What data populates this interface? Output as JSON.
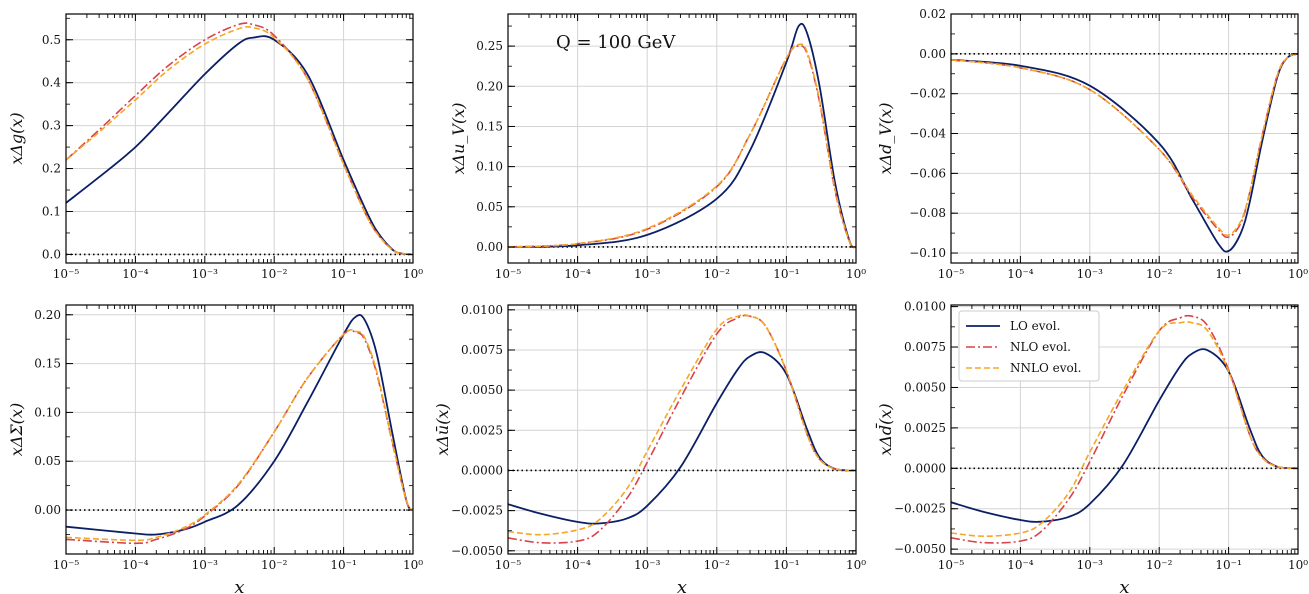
{
  "colors": {
    "lo": "#0b1f66",
    "nlo": "#d8434b",
    "nnlo": "#f5a623",
    "grid": "#d4d4d4",
    "axis": "#000000"
  },
  "legend_entries": [
    "LO evol.",
    "NLO evol.",
    "NNLO evol."
  ],
  "annotation": "Q = 100 GeV",
  "x_axis_label": "x",
  "x_tick_labels": [
    "10⁻⁵",
    "10⁻⁴",
    "10⁻³",
    "10⁻²",
    "10⁻¹",
    "10⁰"
  ],
  "chart_data": [
    {
      "type": "line",
      "ylabel": "xΔg(x)",
      "xscale": "log",
      "xlim": [
        1e-05,
        1
      ],
      "ylim": [
        -0.02,
        0.56
      ],
      "yticks": [
        0.0,
        0.1,
        0.2,
        0.3,
        0.4,
        0.5
      ],
      "ytick_labels": [
        "0.0",
        "0.1",
        "0.2",
        "0.3",
        "0.4",
        "0.5"
      ],
      "x": [
        1e-05,
        3e-05,
        0.0001,
        0.0003,
        0.001,
        0.003,
        0.005,
        0.01,
        0.03,
        0.1,
        0.2,
        0.3,
        0.5,
        0.7,
        1.0
      ],
      "series": [
        {
          "name": "LO evol.",
          "values": [
            0.12,
            0.18,
            0.25,
            0.33,
            0.42,
            0.49,
            0.505,
            0.5,
            0.42,
            0.22,
            0.11,
            0.055,
            0.012,
            0.002,
            0.0
          ]
        },
        {
          "name": "NLO evol.",
          "values": [
            0.22,
            0.29,
            0.37,
            0.44,
            0.5,
            0.535,
            0.535,
            0.51,
            0.41,
            0.21,
            0.1,
            0.05,
            0.011,
            0.002,
            0.0
          ]
        },
        {
          "name": "NNLO evol.",
          "values": [
            0.22,
            0.285,
            0.36,
            0.43,
            0.49,
            0.525,
            0.528,
            0.505,
            0.41,
            0.21,
            0.1,
            0.05,
            0.011,
            0.002,
            0.0
          ]
        }
      ]
    },
    {
      "type": "line",
      "ylabel": "xΔu_V(x)",
      "xscale": "log",
      "xlim": [
        1e-05,
        1
      ],
      "ylim": [
        -0.02,
        0.29
      ],
      "yticks": [
        0.0,
        0.05,
        0.1,
        0.15,
        0.2,
        0.25
      ],
      "ytick_labels": [
        "0.00",
        "0.05",
        "0.10",
        "0.15",
        "0.20",
        "0.25"
      ],
      "x": [
        1e-05,
        0.0001,
        0.001,
        0.01,
        0.03,
        0.1,
        0.15,
        0.2,
        0.3,
        0.5,
        0.8,
        1.0
      ],
      "series": [
        {
          "name": "LO evol.",
          "values": [
            0.0,
            0.002,
            0.015,
            0.06,
            0.12,
            0.23,
            0.275,
            0.265,
            0.2,
            0.08,
            0.008,
            0.0
          ]
        },
        {
          "name": "NLO evol.",
          "values": [
            0.0,
            0.004,
            0.022,
            0.075,
            0.14,
            0.235,
            0.25,
            0.24,
            0.18,
            0.07,
            0.007,
            0.0
          ]
        },
        {
          "name": "NNLO evol.",
          "values": [
            0.0,
            0.004,
            0.023,
            0.076,
            0.14,
            0.235,
            0.252,
            0.242,
            0.182,
            0.072,
            0.007,
            0.0
          ]
        }
      ]
    },
    {
      "type": "line",
      "ylabel": "xΔd_V(x)",
      "xscale": "log",
      "xlim": [
        1e-05,
        1
      ],
      "ylim": [
        -0.105,
        0.02
      ],
      "yticks": [
        -0.1,
        -0.08,
        -0.06,
        -0.04,
        -0.02,
        0.0,
        0.02
      ],
      "ytick_labels": [
        "−0.10",
        "−0.08",
        "−0.06",
        "−0.04",
        "−0.02",
        "0.00",
        "0.02"
      ],
      "x": [
        1e-05,
        0.0001,
        0.001,
        0.01,
        0.03,
        0.07,
        0.1,
        0.15,
        0.2,
        0.3,
        0.5,
        0.7,
        1.0
      ],
      "series": [
        {
          "name": "LO evol.",
          "values": [
            -0.003,
            -0.006,
            -0.016,
            -0.045,
            -0.073,
            -0.095,
            -0.099,
            -0.09,
            -0.075,
            -0.045,
            -0.012,
            -0.002,
            0.0
          ]
        },
        {
          "name": "NLO evol.",
          "values": [
            -0.003,
            -0.007,
            -0.018,
            -0.048,
            -0.072,
            -0.088,
            -0.092,
            -0.085,
            -0.07,
            -0.042,
            -0.011,
            -0.002,
            0.0
          ]
        },
        {
          "name": "NNLO evol.",
          "values": [
            -0.003,
            -0.007,
            -0.018,
            -0.048,
            -0.071,
            -0.087,
            -0.091,
            -0.084,
            -0.07,
            -0.042,
            -0.011,
            -0.002,
            0.0
          ]
        }
      ]
    },
    {
      "type": "line",
      "ylabel": "xΔΣ(x)",
      "xscale": "log",
      "xlim": [
        1e-05,
        1
      ],
      "ylim": [
        -0.045,
        0.21
      ],
      "yticks": [
        0.0,
        0.05,
        0.1,
        0.15,
        0.2
      ],
      "ytick_labels": [
        "0.00",
        "0.05",
        "0.10",
        "0.15",
        "0.20"
      ],
      "x": [
        1e-05,
        0.0001,
        0.0002,
        0.0005,
        0.001,
        0.003,
        0.01,
        0.03,
        0.1,
        0.15,
        0.2,
        0.3,
        0.5,
        0.8,
        1.0
      ],
      "series": [
        {
          "name": "LO evol.",
          "values": [
            -0.017,
            -0.024,
            -0.025,
            -0.02,
            -0.012,
            0.005,
            0.05,
            0.11,
            0.18,
            0.198,
            0.195,
            0.16,
            0.08,
            0.01,
            0.0
          ]
        },
        {
          "name": "NLO evol.",
          "values": [
            -0.03,
            -0.034,
            -0.03,
            -0.02,
            -0.006,
            0.025,
            0.08,
            0.135,
            0.18,
            0.182,
            0.175,
            0.14,
            0.07,
            0.01,
            0.0
          ]
        },
        {
          "name": "NNLO evol.",
          "values": [
            -0.028,
            -0.031,
            -0.028,
            -0.018,
            -0.005,
            0.026,
            0.08,
            0.135,
            0.18,
            0.183,
            0.177,
            0.142,
            0.071,
            0.01,
            0.0
          ]
        }
      ]
    },
    {
      "type": "line",
      "ylabel": "xΔū(x)",
      "xscale": "log",
      "xlim": [
        1e-05,
        1
      ],
      "ylim": [
        -0.0052,
        0.0103
      ],
      "yticks": [
        -0.005,
        -0.0025,
        0.0,
        0.0025,
        0.005,
        0.0075,
        0.01
      ],
      "ytick_labels": [
        "−0.0050",
        "−0.0025",
        "0.0000",
        "0.0025",
        "0.0050",
        "0.0075",
        "0.0100"
      ],
      "x": [
        1e-05,
        3e-05,
        0.0001,
        0.0002,
        0.0005,
        0.001,
        0.003,
        0.01,
        0.02,
        0.03,
        0.05,
        0.1,
        0.2,
        0.3,
        0.5,
        1.0
      ],
      "series": [
        {
          "name": "LO evol.",
          "values": [
            -0.0021,
            -0.0027,
            -0.0032,
            -0.0033,
            -0.003,
            -0.0022,
            0.0002,
            0.0042,
            0.0063,
            0.0071,
            0.0073,
            0.006,
            0.0025,
            0.0008,
            0.0001,
            0.0
          ]
        },
        {
          "name": "NLO evol.",
          "values": [
            -0.0042,
            -0.0045,
            -0.0044,
            -0.0038,
            -0.0018,
            0.0005,
            0.0045,
            0.0085,
            0.0095,
            0.0096,
            0.009,
            0.0062,
            0.0022,
            0.0007,
            0.0001,
            0.0
          ]
        },
        {
          "name": "NNLO evol.",
          "values": [
            -0.0038,
            -0.004,
            -0.0037,
            -0.0031,
            -0.0012,
            0.0012,
            0.005,
            0.0088,
            0.0096,
            0.0096,
            0.009,
            0.0062,
            0.0022,
            0.0007,
            0.0001,
            0.0
          ]
        }
      ]
    },
    {
      "type": "line",
      "ylabel": "xΔd̄(x)",
      "xscale": "log",
      "xlim": [
        1e-05,
        1
      ],
      "ylim": [
        -0.0053,
        0.0101
      ],
      "yticks": [
        -0.005,
        -0.0025,
        0.0,
        0.0025,
        0.005,
        0.0075,
        0.01
      ],
      "ytick_labels": [
        "−0.0050",
        "−0.0025",
        "0.0000",
        "0.0025",
        "0.0050",
        "0.0075",
        "0.0100"
      ],
      "x": [
        1e-05,
        3e-05,
        0.0001,
        0.0002,
        0.0005,
        0.001,
        0.003,
        0.01,
        0.02,
        0.03,
        0.05,
        0.1,
        0.2,
        0.3,
        0.5,
        1.0
      ],
      "series": [
        {
          "name": "LO evol.",
          "values": [
            -0.0021,
            -0.0027,
            -0.0032,
            -0.0033,
            -0.003,
            -0.0022,
            0.0002,
            0.0042,
            0.0063,
            0.0071,
            0.0073,
            0.006,
            0.0025,
            0.0008,
            0.0001,
            0.0
          ]
        },
        {
          "name": "NLO evol.",
          "values": [
            -0.0043,
            -0.0046,
            -0.0045,
            -0.0039,
            -0.0019,
            0.0004,
            0.0045,
            0.0085,
            0.0093,
            0.0094,
            0.0088,
            0.0061,
            0.0021,
            0.0007,
            0.0001,
            0.0
          ]
        },
        {
          "name": "NNLO evol.",
          "values": [
            -0.004,
            -0.0042,
            -0.004,
            -0.0034,
            -0.0015,
            0.001,
            0.0048,
            0.0085,
            0.009,
            0.009,
            0.0085,
            0.006,
            0.0021,
            0.0007,
            0.0001,
            0.0
          ]
        }
      ]
    }
  ]
}
